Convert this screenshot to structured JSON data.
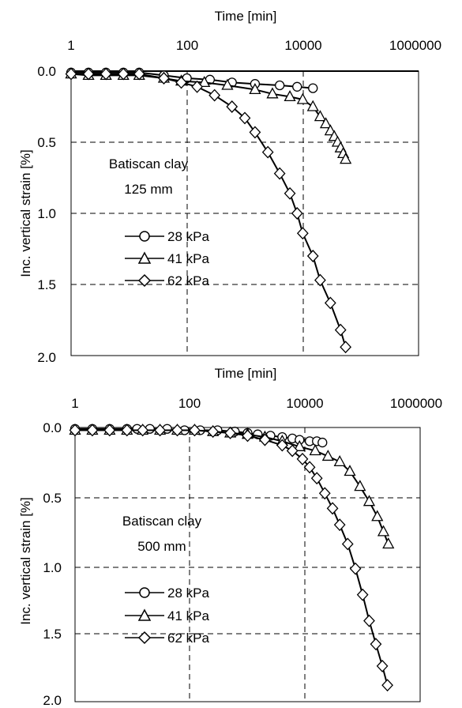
{
  "figure": {
    "panels": [
      "panel-125",
      "panel-500"
    ]
  },
  "chart_data": [
    {
      "type": "line",
      "xlabel": "Time [min]",
      "ylabel": "Inc. vertical strain [%]",
      "x_scale": "log",
      "x_ticks": [
        "1",
        "100",
        "10000",
        "1000000"
      ],
      "y_ticks": [
        "0.0",
        "0.5",
        "1.0",
        "1.5",
        "2.0"
      ],
      "xlim": [
        1,
        1000000
      ],
      "ylim": [
        0,
        2
      ],
      "y_inverted": true,
      "grid": "dashed",
      "annotation": [
        "Batiscan clay",
        "125 mm"
      ],
      "legend_position": "middle-left",
      "series": [
        {
          "name": "28 kPa",
          "marker": "circle",
          "x": [
            1,
            2,
            4,
            8,
            15,
            40,
            100,
            250,
            600,
            1500,
            4000,
            8000,
            15000
          ],
          "y": [
            0.01,
            0.01,
            0.01,
            0.01,
            0.01,
            0.03,
            0.05,
            0.06,
            0.08,
            0.09,
            0.1,
            0.11,
            0.12
          ]
        },
        {
          "name": "41 kPa",
          "marker": "triangle",
          "x": [
            1,
            2,
            4,
            8,
            15,
            40,
            80,
            200,
            500,
            1500,
            3000,
            6000,
            10000,
            15000,
            20000,
            25000,
            30000,
            35000,
            40000,
            45000,
            50000,
            55000
          ],
          "y": [
            0.02,
            0.03,
            0.03,
            0.03,
            0.03,
            0.05,
            0.07,
            0.08,
            0.1,
            0.13,
            0.16,
            0.18,
            0.2,
            0.25,
            0.32,
            0.37,
            0.42,
            0.46,
            0.5,
            0.54,
            0.58,
            0.62
          ]
        },
        {
          "name": "62 kPa",
          "marker": "diamond",
          "x": [
            1,
            2,
            4,
            8,
            15,
            40,
            80,
            150,
            300,
            600,
            1000,
            1500,
            2500,
            4000,
            6000,
            8000,
            10000,
            15000,
            20000,
            30000,
            45000,
            55000
          ],
          "y": [
            0.02,
            0.02,
            0.02,
            0.02,
            0.02,
            0.05,
            0.08,
            0.11,
            0.17,
            0.25,
            0.33,
            0.43,
            0.57,
            0.72,
            0.86,
            1.0,
            1.14,
            1.3,
            1.47,
            1.63,
            1.82,
            1.94
          ]
        }
      ]
    },
    {
      "type": "line",
      "xlabel": "Time [min]",
      "ylabel": "Inc. vertical strain [%]",
      "x_scale": "log",
      "x_ticks": [
        "1",
        "100",
        "10000",
        "1000000"
      ],
      "y_ticks": [
        "0.0",
        "0.5",
        "1.0",
        "1.5",
        "2.0"
      ],
      "xlim": [
        1,
        1000000
      ],
      "ylim": [
        0,
        2
      ],
      "y_inverted": true,
      "grid": "dashed",
      "annotation": [
        "Batiscan clay",
        "500 mm"
      ],
      "legend_position": "middle-left",
      "series": [
        {
          "name": "28 kPa",
          "marker": "circle",
          "x": [
            1,
            2,
            4,
            8,
            12,
            20,
            40,
            80,
            150,
            300,
            600,
            1000,
            1500,
            2500,
            4000,
            6000,
            8000,
            12000,
            16000,
            20000
          ],
          "y": [
            0.01,
            0.01,
            0.01,
            0.01,
            0.01,
            0.01,
            0.01,
            0.02,
            0.02,
            0.02,
            0.03,
            0.04,
            0.05,
            0.06,
            0.07,
            0.08,
            0.09,
            0.1,
            0.1,
            0.11
          ]
        },
        {
          "name": "41 kPa",
          "marker": "triangle",
          "x": [
            1,
            2,
            4,
            8,
            15,
            30,
            60,
            120,
            250,
            500,
            1000,
            2000,
            4000,
            8000,
            15000,
            25000,
            40000,
            60000,
            90000,
            130000,
            180000,
            230000,
            280000
          ],
          "y": [
            0.02,
            0.02,
            0.02,
            0.02,
            0.02,
            0.02,
            0.02,
            0.02,
            0.03,
            0.04,
            0.05,
            0.07,
            0.1,
            0.14,
            0.17,
            0.21,
            0.25,
            0.32,
            0.43,
            0.54,
            0.65,
            0.76,
            0.85
          ]
        },
        {
          "name": "62 kPa",
          "marker": "diamond",
          "x": [
            1,
            2,
            4,
            8,
            15,
            30,
            60,
            120,
            250,
            500,
            1000,
            2000,
            4000,
            6000,
            9000,
            12000,
            16000,
            22000,
            30000,
            40000,
            55000,
            75000,
            100000,
            130000,
            170000,
            220000,
            270000
          ],
          "y": [
            0.02,
            0.02,
            0.02,
            0.02,
            0.02,
            0.02,
            0.02,
            0.02,
            0.03,
            0.04,
            0.06,
            0.09,
            0.13,
            0.17,
            0.23,
            0.29,
            0.37,
            0.48,
            0.59,
            0.71,
            0.85,
            1.03,
            1.22,
            1.41,
            1.58,
            1.74,
            1.88
          ]
        }
      ]
    }
  ]
}
